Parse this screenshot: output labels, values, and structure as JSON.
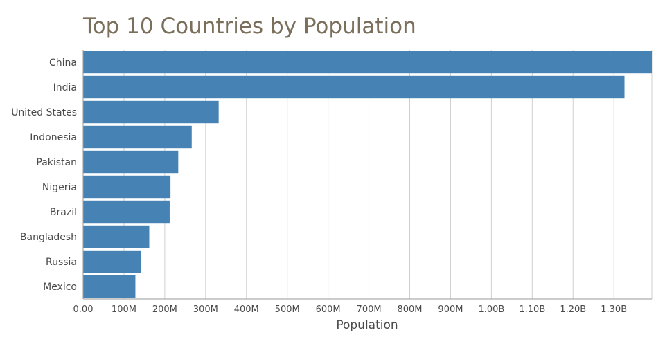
{
  "chart_data": {
    "type": "bar",
    "orientation": "horizontal",
    "title": "Top 10 Countries by Population",
    "xlabel": "Population",
    "ylabel": "",
    "categories": [
      "China",
      "India",
      "United States",
      "Indonesia",
      "Pakistan",
      "Nigeria",
      "Brazil",
      "Bangladesh",
      "Russia",
      "Mexico"
    ],
    "values": [
      1393000000,
      1326000000,
      332000000,
      266000000,
      233000000,
      214000000,
      212000000,
      162000000,
      141000000,
      128000000
    ],
    "xlim": [
      0,
      1393000000
    ],
    "tick_values": [
      0,
      100000000,
      200000000,
      300000000,
      400000000,
      500000000,
      600000000,
      700000000,
      800000000,
      900000000,
      1000000000,
      1100000000,
      1200000000,
      1300000000
    ],
    "tick_labels": [
      "0.00",
      "100M",
      "200M",
      "300M",
      "400M",
      "500M",
      "600M",
      "700M",
      "800M",
      "900M",
      "1.00B",
      "1.10B",
      "1.20B",
      "1.30B"
    ],
    "bar_color": "#4682b4",
    "grid": true,
    "legend": "none"
  }
}
